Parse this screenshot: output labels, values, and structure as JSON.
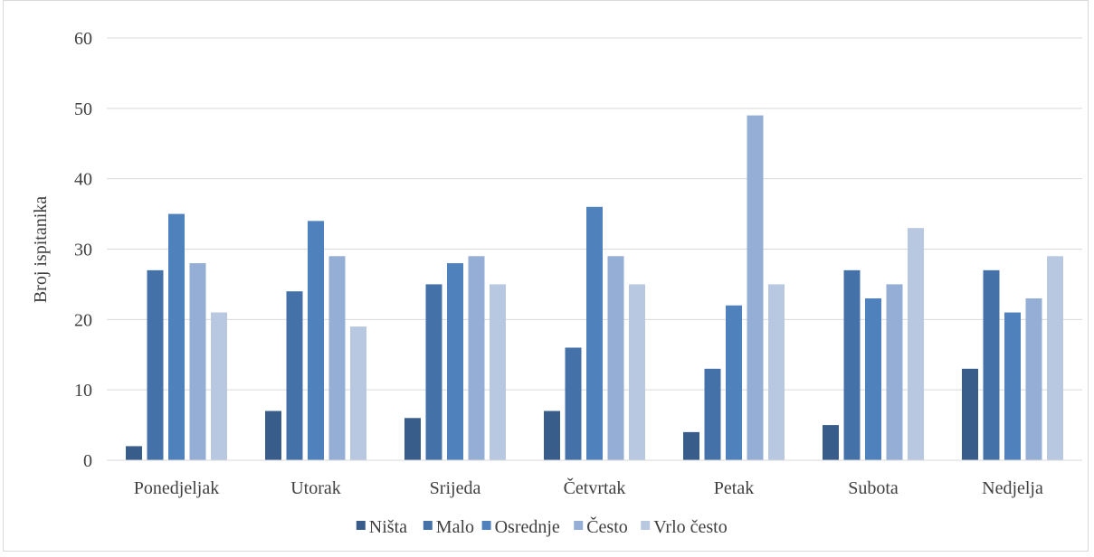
{
  "chart_data": {
    "type": "bar",
    "title": "",
    "xlabel": "",
    "ylabel": "Broj ispitanika",
    "ylim": [
      0,
      60
    ],
    "yticks": [
      0,
      10,
      20,
      30,
      40,
      50,
      60
    ],
    "grid": true,
    "legend_position": "bottom",
    "categories": [
      "Ponedjeljak",
      "Utorak",
      "Srijeda",
      "Četvrtak",
      "Petak",
      "Subota",
      "Nedjelja"
    ],
    "series": [
      {
        "name": "Ništa",
        "color": "#385d8a",
        "values": [
          2,
          7,
          6,
          7,
          4,
          5,
          13
        ]
      },
      {
        "name": "Malo",
        "color": "#4472a8",
        "values": [
          27,
          24,
          25,
          16,
          13,
          27,
          27
        ]
      },
      {
        "name": "Osrednje",
        "color": "#4f81bd",
        "values": [
          35,
          34,
          28,
          36,
          22,
          23,
          21
        ]
      },
      {
        "name": "Često",
        "color": "#95aed5",
        "values": [
          28,
          29,
          29,
          29,
          49,
          25,
          23
        ]
      },
      {
        "name": "Vrlo često",
        "color": "#b9c8e1",
        "values": [
          21,
          19,
          25,
          25,
          25,
          33,
          29
        ]
      }
    ]
  }
}
